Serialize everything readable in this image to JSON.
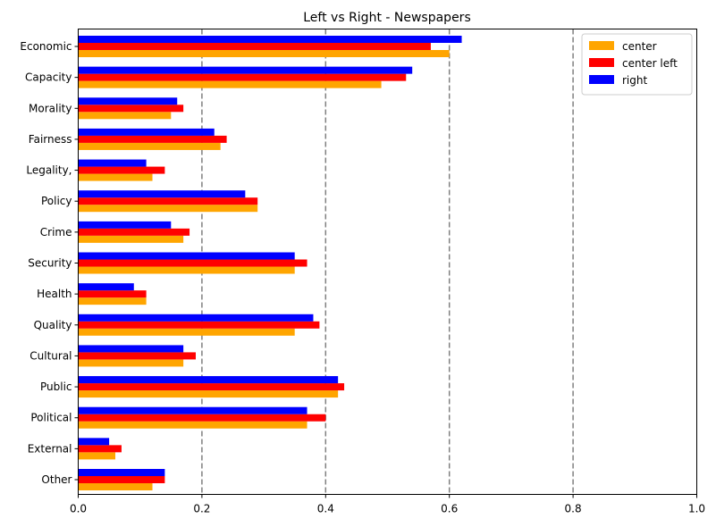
{
  "chart_data": {
    "type": "bar",
    "orientation": "horizontal",
    "title": "Left vs Right - Newspapers",
    "xlabel": "",
    "ylabel": "",
    "xlim": [
      0,
      1.0
    ],
    "xticks": [
      "0.0",
      "0.2",
      "0.4",
      "0.6",
      "0.8",
      "1.0"
    ],
    "reference_lines": [
      0.2,
      0.4,
      0.6,
      0.8
    ],
    "categories": [
      "Economic",
      "Capacity",
      "Morality",
      "Fairness",
      "Legality,",
      "Policy",
      "Crime",
      "Security",
      "Health",
      "Quality",
      "Cultural",
      "Public",
      "Political",
      "External",
      "Other"
    ],
    "series": [
      {
        "name": "center",
        "color": "#ffa500",
        "values": [
          0.6,
          0.49,
          0.15,
          0.23,
          0.12,
          0.29,
          0.17,
          0.35,
          0.11,
          0.35,
          0.17,
          0.42,
          0.37,
          0.06,
          0.12
        ]
      },
      {
        "name": "center left",
        "color": "#ff0000",
        "values": [
          0.57,
          0.53,
          0.17,
          0.24,
          0.14,
          0.29,
          0.18,
          0.37,
          0.11,
          0.39,
          0.19,
          0.43,
          0.4,
          0.07,
          0.14
        ]
      },
      {
        "name": "right",
        "color": "#0000ff",
        "values": [
          0.62,
          0.54,
          0.16,
          0.22,
          0.11,
          0.27,
          0.15,
          0.35,
          0.09,
          0.38,
          0.17,
          0.42,
          0.37,
          0.05,
          0.14
        ]
      }
    ],
    "grid": false,
    "legend_position": "top-right"
  }
}
